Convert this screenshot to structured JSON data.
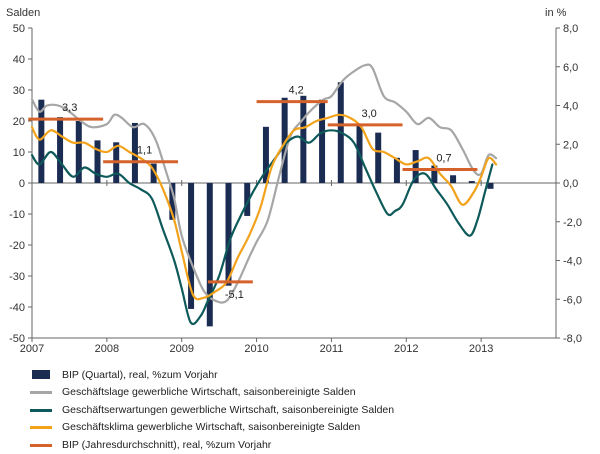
{
  "chart_data": {
    "type": "bar+line",
    "left_axis": {
      "label": "Salden",
      "ylim": [
        -50,
        50
      ],
      "ticks": [
        50,
        40,
        30,
        20,
        10,
        0,
        -10,
        -20,
        -30,
        -40,
        -50
      ]
    },
    "right_axis": {
      "label": "in %",
      "ylim": [
        -8,
        8
      ],
      "ticks": [
        "8,0",
        "6,0",
        "4,0",
        "2,0",
        "0,0",
        "-2,0",
        "-4,0",
        "-6,0",
        "-8,0"
      ]
    },
    "x_axis": {
      "xlim": [
        2007,
        2014
      ],
      "tick_labels": [
        "2007",
        "2008",
        "2009",
        "2010",
        "2011",
        "2012",
        "2013"
      ]
    },
    "colors": {
      "bar": "#1b2c52",
      "lage": "#a6a6a6",
      "erwartungen": "#0e5a5a",
      "klima": "#f2a21b",
      "annual": "#d4622a",
      "axis": "#666666"
    },
    "series": [
      {
        "name": "BIP (Quartal), real, %zum Vorjahr",
        "kind": "bar",
        "axis": "right",
        "x": [
          2007.125,
          2007.375,
          2007.625,
          2007.875,
          2008.125,
          2008.375,
          2008.625,
          2008.875,
          2009.125,
          2009.375,
          2009.625,
          2009.875,
          2010.125,
          2010.375,
          2010.625,
          2010.875,
          2011.125,
          2011.375,
          2011.625,
          2011.875,
          2012.125,
          2012.375,
          2012.625,
          2012.875,
          2013.125
        ],
        "values": [
          4.3,
          3.4,
          3.2,
          2.2,
          2.1,
          3.1,
          1.0,
          -1.9,
          -6.5,
          -7.4,
          -5.3,
          -1.7,
          2.9,
          4.4,
          4.5,
          4.3,
          5.2,
          3.0,
          2.6,
          1.3,
          1.7,
          0.9,
          0.4,
          0.1,
          -0.3
        ]
      },
      {
        "name": "Geschäftslage gewerbliche Wirtschaft, saisonbereinigte Salden",
        "kind": "line",
        "axis": "left",
        "x": [
          2007.0,
          2007.1,
          2007.2,
          2007.35,
          2007.5,
          2007.65,
          2007.8,
          2008.0,
          2008.1,
          2008.2,
          2008.35,
          2008.5,
          2008.65,
          2008.8,
          2008.9,
          2009.0,
          2009.15,
          2009.3,
          2009.45,
          2009.6,
          2009.75,
          2009.9,
          2010.0,
          2010.15,
          2010.3,
          2010.45,
          2010.6,
          2010.75,
          2010.9,
          2011.0,
          2011.15,
          2011.3,
          2011.45,
          2011.55,
          2011.7,
          2011.85,
          2012.0,
          2012.15,
          2012.3,
          2012.45,
          2012.6,
          2012.75,
          2012.9,
          2013.0,
          2013.1,
          2013.2
        ],
        "values": [
          27,
          23,
          25,
          25,
          23,
          20,
          18,
          19,
          22,
          21,
          18,
          19,
          14,
          3,
          -5,
          -17,
          -27,
          -35,
          -38,
          -38,
          -32,
          -24,
          -19,
          -12,
          2,
          15,
          20,
          24,
          27,
          28,
          33,
          36,
          38,
          37,
          28,
          26,
          23,
          19,
          21,
          18,
          17,
          11,
          4,
          3,
          9,
          8
        ]
      },
      {
        "name": "Geschäftserwartungen gewerbliche Wirtschaft, saisonbereinigte Salden",
        "kind": "line",
        "axis": "left",
        "x": [
          2007.0,
          2007.1,
          2007.25,
          2007.4,
          2007.55,
          2007.7,
          2007.85,
          2008.0,
          2008.15,
          2008.3,
          2008.45,
          2008.6,
          2008.75,
          2008.9,
          2009.0,
          2009.12,
          2009.25,
          2009.35,
          2009.5,
          2009.65,
          2009.8,
          2009.95,
          2010.1,
          2010.25,
          2010.4,
          2010.55,
          2010.7,
          2010.85,
          2011.0,
          2011.15,
          2011.3,
          2011.45,
          2011.6,
          2011.75,
          2011.85,
          2011.95,
          2012.1,
          2012.25,
          2012.4,
          2012.55,
          2012.7,
          2012.85,
          2012.95,
          2013.05,
          2013.15
        ],
        "values": [
          9,
          6,
          10,
          6,
          2,
          5,
          3,
          2,
          3,
          0,
          -2,
          -5,
          -15,
          -25,
          -34,
          -45,
          -43,
          -38,
          -30,
          -18,
          -10,
          -3,
          3,
          8,
          13,
          15,
          13,
          16,
          17,
          16,
          13,
          5,
          -3,
          -10,
          -9,
          -7,
          1,
          3,
          -2,
          -7,
          -13,
          -17,
          -12,
          -3,
          6
        ]
      },
      {
        "name": "Geschäftsklima gewerbliche Wirtschaft, saisonbereinigte Salden",
        "kind": "line",
        "axis": "left",
        "x": [
          2007.0,
          2007.1,
          2007.25,
          2007.4,
          2007.55,
          2007.7,
          2007.85,
          2008.0,
          2008.15,
          2008.3,
          2008.45,
          2008.6,
          2008.75,
          2008.9,
          2009.0,
          2009.15,
          2009.3,
          2009.45,
          2009.6,
          2009.75,
          2009.9,
          2010.05,
          2010.2,
          2010.35,
          2010.5,
          2010.65,
          2010.8,
          2010.95,
          2011.1,
          2011.25,
          2011.4,
          2011.55,
          2011.7,
          2011.85,
          2012.0,
          2012.15,
          2012.3,
          2012.45,
          2012.6,
          2012.75,
          2012.9,
          2013.0,
          2013.1,
          2013.2
        ],
        "values": [
          18,
          14,
          17,
          15,
          13,
          13,
          11,
          10,
          12,
          10,
          8,
          5,
          -2,
          -12,
          -22,
          -36,
          -37,
          -35,
          -32,
          -24,
          -17,
          -8,
          5,
          12,
          17,
          18,
          20,
          21,
          22,
          21,
          18,
          11,
          10,
          8,
          6,
          7,
          8,
          3,
          -1,
          -7,
          -3,
          2,
          8,
          6
        ]
      },
      {
        "name": "BIP (Jahresdurchschnitt), real,  %zum Vorjahr",
        "kind": "step",
        "axis": "right",
        "segments": [
          {
            "x0": 2006.95,
            "x1": 2007.95,
            "value": 3.3,
            "label": "3,3"
          },
          {
            "x0": 2007.95,
            "x1": 2008.95,
            "value": 1.1,
            "label": "1,1"
          },
          {
            "x0": 2009.35,
            "x1": 2009.95,
            "value": -5.1,
            "label": "-5,1"
          },
          {
            "x0": 2010.0,
            "x1": 2010.95,
            "value": 4.2,
            "label": "4,2"
          },
          {
            "x0": 2010.95,
            "x1": 2011.95,
            "value": 3.0,
            "label": "3,0"
          },
          {
            "x0": 2011.95,
            "x1": 2012.95,
            "value": 0.7,
            "label": "0,7"
          }
        ]
      }
    ]
  }
}
